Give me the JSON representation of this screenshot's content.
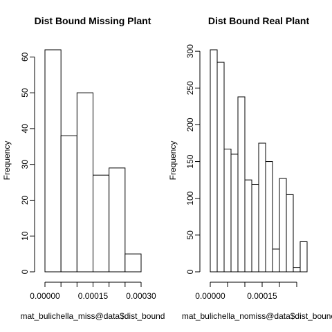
{
  "chart_data": [
    {
      "type": "bar",
      "title": "Dist Bound Missing Plant",
      "xlabel": "mat_bulichella_miss@data$dist_bound",
      "ylabel": "Frequency",
      "bin_edges": [
        0.0,
        5e-05,
        0.0001,
        0.00015,
        0.0002,
        0.00025,
        0.0003
      ],
      "values": [
        62,
        38,
        50,
        27,
        29,
        5
      ],
      "xlim": [
        0.0,
        0.0003
      ],
      "ylim": [
        0,
        62
      ],
      "x_ticks": [
        0.0,
        5e-05,
        0.0001,
        0.00015,
        0.0002,
        0.00025,
        0.0003
      ],
      "x_tick_labels": [
        "0.00000",
        "",
        "",
        "0.00015",
        "",
        "",
        "0.00030"
      ],
      "y_ticks": [
        0,
        10,
        20,
        30,
        40,
        50,
        60
      ],
      "y_tick_labels": [
        "0",
        "10",
        "20",
        "30",
        "40",
        "50",
        "60"
      ],
      "grid": false
    },
    {
      "type": "bar",
      "title": "Dist Bound Real Plant",
      "xlabel": "mat_bulichella_nomiss@data$dist_bound",
      "ylabel": "Frequency",
      "bin_edges": [
        0.0,
        2e-05,
        4e-05,
        6e-05,
        8e-05,
        0.0001,
        0.00012,
        0.00014,
        0.00016,
        0.00018,
        0.0002,
        0.00022,
        0.00024,
        0.00026,
        0.00028
      ],
      "values": [
        302,
        285,
        167,
        160,
        238,
        125,
        119,
        175,
        150,
        31,
        127,
        105,
        6,
        41
      ],
      "xlim": [
        0.0,
        0.00028
      ],
      "ylim": [
        0,
        302
      ],
      "x_ticks": [
        0.0,
        5e-05,
        0.0001,
        0.00015,
        0.0002,
        0.00025
      ],
      "x_tick_labels": [
        "0.00000",
        "",
        "",
        "0.00015",
        "",
        ""
      ],
      "y_ticks": [
        0,
        50,
        100,
        150,
        200,
        250,
        300
      ],
      "y_tick_labels": [
        "0",
        "50",
        "100",
        "150",
        "200",
        "250",
        "300"
      ],
      "grid": false
    }
  ]
}
